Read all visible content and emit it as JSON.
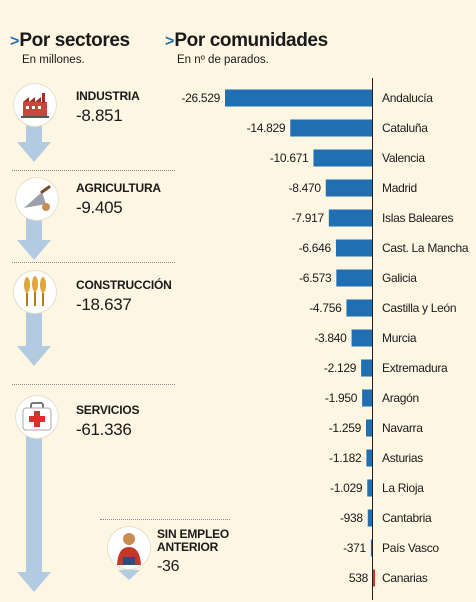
{
  "left_header": {
    "caret": ">",
    "title": "Por sectores",
    "subtitle": "En millones."
  },
  "right_header": {
    "caret": ">",
    "title": "Por comunidades",
    "subtitle": "En nº de parados."
  },
  "sectors": [
    {
      "name": "INDUSTRIA",
      "value": "-8.851",
      "icon": "factory-icon"
    },
    {
      "name": "AGRICULTURA",
      "value": "-9.405",
      "icon": "trowel-icon"
    },
    {
      "name": "CONSTRUCCIÓN",
      "value": "-18.637",
      "icon": "wheat-icon"
    },
    {
      "name": "SERVICIOS",
      "value": "-61.336",
      "icon": "medical-kit-icon"
    },
    {
      "name": "SIN EMPLEO ANTERIOR",
      "value": "-36",
      "icon": "person-icon"
    }
  ],
  "colors": {
    "bar_negative": "#1f6fb2",
    "bar_positive": "#d9302c",
    "arrow": "#b3cbe0",
    "background": "#fdf6e3"
  },
  "chart_data": {
    "type": "bar",
    "orientation": "horizontal",
    "categories": [
      "Andalucía",
      "Cataluña",
      "Valencia",
      "Madrid",
      "Islas Baleares",
      "Cast. La Mancha",
      "Galicia",
      "Castilla y León",
      "Murcia",
      "Extremadura",
      "Aragón",
      "Navarra",
      "Asturias",
      "La Rioja",
      "Cantabria",
      "País Vasco",
      "Canarias"
    ],
    "values": [
      -26529,
      -14829,
      -10671,
      -8470,
      -7917,
      -6646,
      -6573,
      -4756,
      -3840,
      -2129,
      -1950,
      -1259,
      -1182,
      -1029,
      -938,
      -371,
      538
    ],
    "labels": [
      "-26.529",
      "-14.829",
      "-10.671",
      "-8.470",
      "-7.917",
      "-6.646",
      "-6.573",
      "-4.756",
      "-3.840",
      "-2.129",
      "-1.950",
      "-1.259",
      "-1.182",
      "-1.029",
      "-938",
      "-371",
      "538"
    ],
    "title": "Por comunidades",
    "subtitle": "En nº de parados.",
    "xlim": [
      -26529,
      538
    ],
    "grid": false,
    "legend": "none"
  }
}
